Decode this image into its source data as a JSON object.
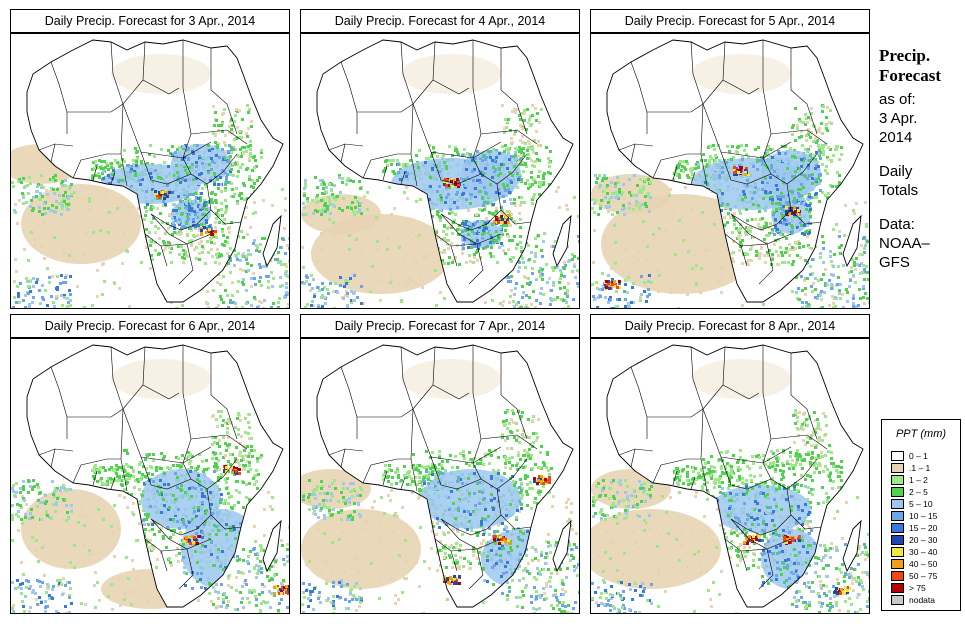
{
  "panels": [
    {
      "title": "Daily Precip. Forecast for  3 Apr., 2014"
    },
    {
      "title": "Daily Precip. Forecast for  4 Apr., 2014"
    },
    {
      "title": "Daily Precip. Forecast for  5 Apr., 2014"
    },
    {
      "title": "Daily Precip. Forecast for  6 Apr., 2014"
    },
    {
      "title": "Daily Precip. Forecast for  7 Apr., 2014"
    },
    {
      "title": "Daily Precip. Forecast for  8 Apr., 2014"
    }
  ],
  "side": {
    "title_line1": "Precip.",
    "title_line2": "Forecast",
    "asof": "as of:",
    "date_line1": "3 Apr.",
    "date_line2": "2014",
    "daily": "Daily",
    "totals": "Totals",
    "data_label": "Data:",
    "source_line1": "NOAA–",
    "source_line2": "GFS"
  },
  "legend": {
    "title": "PPT (mm)",
    "items": [
      {
        "label": "0 – 1",
        "color": "#ffffff"
      },
      {
        "label": ".1 – 1",
        "color": "#e8d4b4"
      },
      {
        "label": "1 – 2",
        "color": "#9ee88c"
      },
      {
        "label": "2 – 5",
        "color": "#4fd24f"
      },
      {
        "label": "5 – 10",
        "color": "#9ec8f0"
      },
      {
        "label": "10 – 15",
        "color": "#6ea4e8"
      },
      {
        "label": "15 – 20",
        "color": "#3c78dc"
      },
      {
        "label": "20 – 30",
        "color": "#1e46b4"
      },
      {
        "label": "30 – 40",
        "color": "#f0e646"
      },
      {
        "label": "40 – 50",
        "color": "#f0a014"
      },
      {
        "label": "50 – 75",
        "color": "#f04614"
      },
      {
        "label": "> 75",
        "color": "#b40000"
      },
      {
        "label": "nodata",
        "color": "#c8c8c8"
      }
    ]
  }
}
